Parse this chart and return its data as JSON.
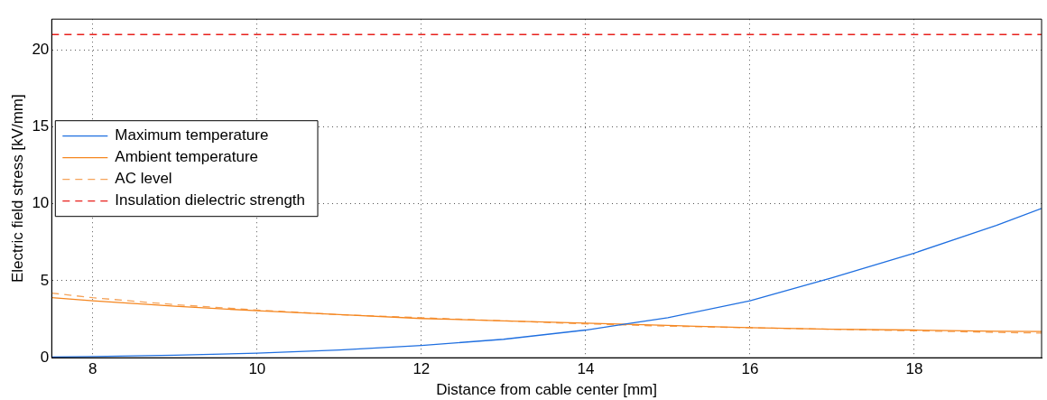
{
  "chart_data": {
    "type": "line",
    "xlabel": "Distance from cable center [mm]",
    "ylabel": "Electric field stress [kV/mm]",
    "xlim": [
      7.5,
      19.55
    ],
    "xticks": [
      8,
      10,
      12,
      14,
      16,
      18
    ],
    "ylim": [
      0,
      22
    ],
    "yticks": [
      0,
      5,
      10,
      15,
      20
    ],
    "grid": true,
    "legend": "left",
    "marker": "none",
    "series": [
      {
        "name": "Maximum temperature",
        "color": "#1f6fe0",
        "line_style": "solid",
        "x": [
          7.5,
          8,
          9,
          10,
          11,
          12,
          13,
          14,
          14.5,
          15,
          16,
          17,
          18,
          19,
          19.55
        ],
        "values": [
          0.05,
          0.08,
          0.17,
          0.3,
          0.5,
          0.8,
          1.2,
          1.8,
          2.2,
          2.6,
          3.7,
          5.2,
          6.8,
          8.6,
          9.7
        ]
      },
      {
        "name": "Ambient temperature",
        "color": "#f5861f",
        "line_style": "solid",
        "x": [
          7.5,
          8,
          9,
          10,
          11,
          12,
          13,
          14,
          15,
          16,
          17,
          18,
          19,
          19.55
        ],
        "values": [
          3.9,
          3.7,
          3.35,
          3.05,
          2.8,
          2.55,
          2.4,
          2.25,
          2.1,
          1.95,
          1.85,
          1.8,
          1.72,
          1.7
        ]
      },
      {
        "name": "AC level",
        "color": "#f5a35a",
        "line_style": "dashed",
        "x": [
          7.5,
          8,
          9,
          10,
          11,
          12,
          13,
          14,
          15,
          16,
          17,
          18,
          19,
          19.55
        ],
        "values": [
          4.2,
          3.9,
          3.45,
          3.1,
          2.8,
          2.6,
          2.4,
          2.2,
          2.05,
          1.95,
          1.85,
          1.75,
          1.65,
          1.6
        ]
      },
      {
        "name": "Insulation dielectric strength",
        "color": "#e8201c",
        "line_style": "dashed",
        "x": [
          7.5,
          19.55
        ],
        "values": [
          21,
          21
        ]
      }
    ]
  }
}
